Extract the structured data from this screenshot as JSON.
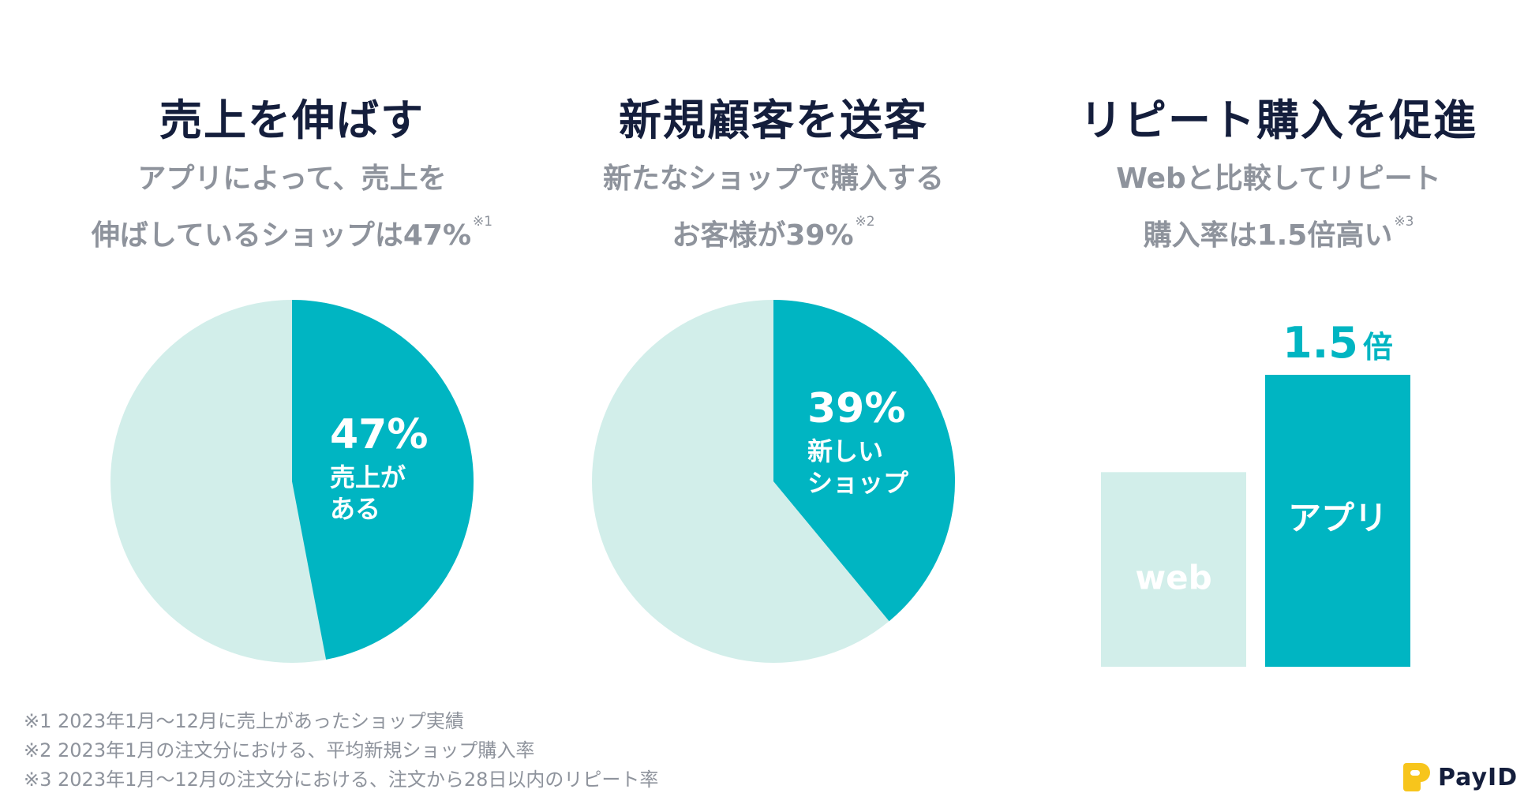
{
  "colors": {
    "accent": "#00b5c2",
    "light": "#d2eeea",
    "heading": "#141e3c",
    "subtext": "#8e939c",
    "logo_yellow": "#f7c51c"
  },
  "panels": [
    {
      "heading": "売上を伸ばす",
      "sub_line1": "アプリによって、売上を",
      "sub_line2": "伸ばしているショップは47%",
      "note_mark": "※1"
    },
    {
      "heading": "新規顧客を送客",
      "sub_line1": "新たなショップで購入する",
      "sub_line2": "お客様が39%",
      "note_mark": "※2"
    },
    {
      "heading": "リピート購入を促進",
      "sub_line1": "Webと比較してリピート",
      "sub_line2": "購入率は1.5倍高い",
      "note_mark": "※3"
    }
  ],
  "chart_data": [
    {
      "type": "pie",
      "values": [
        47,
        53
      ],
      "slice_label": {
        "value": "47%",
        "line1": "売上が",
        "line2": "ある"
      }
    },
    {
      "type": "pie",
      "values": [
        39,
        61
      ],
      "slice_label": {
        "value": "39%",
        "line1": "新しい",
        "line2": "ショップ"
      }
    },
    {
      "type": "bar",
      "categories": [
        "web",
        "アプリ"
      ],
      "values": [
        1,
        1.5
      ],
      "data_label": "1.5",
      "data_label_unit": "倍"
    }
  ],
  "footnotes": [
    "※1 2023年1月〜12月に売上があったショップ実績",
    "※2 2023年1月の注文分における、平均新規ショップ購入率",
    "※3 2023年1月〜12月の注文分における、注文から28日以内のリピート率"
  ],
  "logo": {
    "text": "PayID"
  }
}
